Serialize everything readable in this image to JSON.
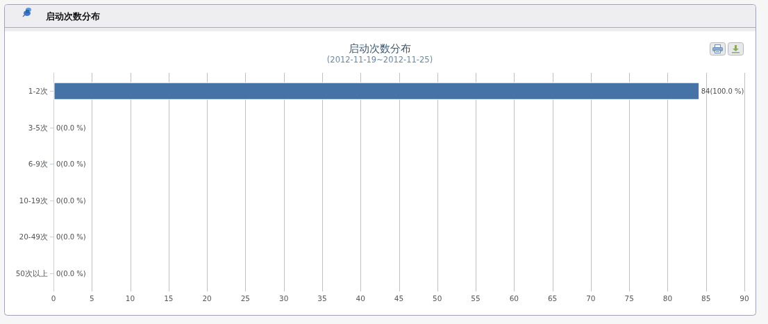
{
  "chart_data": {
    "type": "bar",
    "orientation": "horizontal",
    "title": "启动次数分布",
    "subtitle": "(2012-11-19~2012-11-25)",
    "annotations": [
      "启动次数分布"
    ],
    "categories": [
      "1-2次",
      "3-5次",
      "6-9次",
      "10-19次",
      "20-49次",
      "50次以上"
    ],
    "values": [
      84,
      0,
      0,
      0,
      0,
      0
    ],
    "value_labels": [
      "84(100.0 %)",
      "0(0.0 %)",
      "0(0.0 %)",
      "0(0.0 %)",
      "0(0.0 %)",
      "0(0.0 %)"
    ],
    "color": "#4572a7",
    "xlim": [
      0,
      90
    ],
    "xticks": [
      0,
      5,
      10,
      15,
      20,
      25,
      30,
      35,
      40,
      45,
      50,
      55,
      60,
      65,
      70,
      75,
      80,
      85,
      90
    ],
    "grid": "x"
  }
}
